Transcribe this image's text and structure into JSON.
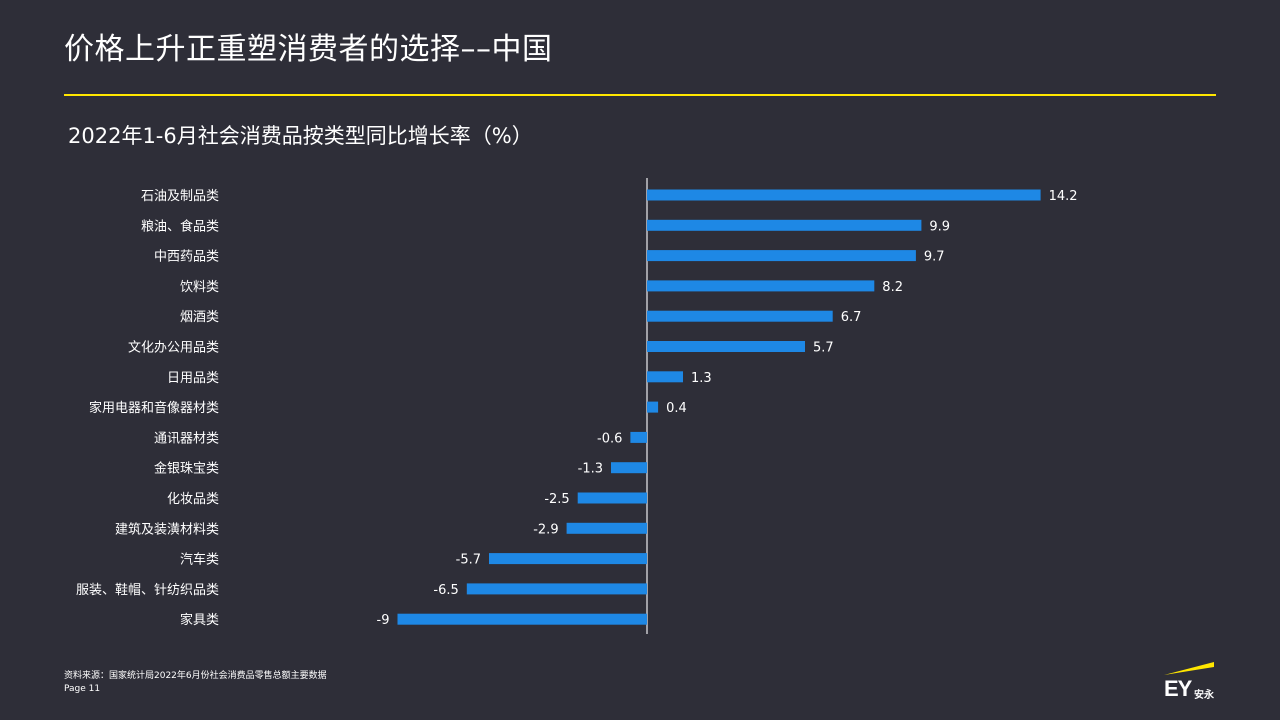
{
  "header": {
    "title": "价格上升正重塑消费者的选择––中国"
  },
  "chart_data": {
    "type": "bar",
    "orientation": "horizontal",
    "title": "2022年1-6月社会消费品按类型同比增长率（%）",
    "categories": [
      "石油及制品类",
      "粮油、食品类",
      "中西药品类",
      "饮料类",
      "烟酒类",
      "文化办公用品类",
      "日用品类",
      "家用电器和音像器材类",
      "通讯器材类",
      "金银珠宝类",
      "化妆品类",
      "建筑及装潢材料类",
      "汽车类",
      "服装、鞋帽、针纺织品类",
      "家具类"
    ],
    "values": [
      14.2,
      9.9,
      9.7,
      8.2,
      6.7,
      5.7,
      1.3,
      0.4,
      -0.6,
      -1.3,
      -2.5,
      -2.9,
      -5.7,
      -6.5,
      -9
    ],
    "value_labels": [
      "14.2",
      "9.9",
      "9.7",
      "8.2",
      "6.7",
      "5.7",
      "1.3",
      "0.4",
      "-0.6",
      "-1.3",
      "-2.5",
      "-2.9",
      "-5.7",
      "-6.5",
      "-9"
    ],
    "xlim": [
      -9,
      14.2
    ],
    "grid": false,
    "bar_color": "#1e88e5",
    "axis_color": "#c7c7cc"
  },
  "footer": {
    "source": "资料来源：国家统计局2022年6月份社会消费品零售总额主要数据",
    "page": "Page 11"
  },
  "logo": {
    "brand": "EY",
    "brand_cn": "安永",
    "accent_color": "#ffe600"
  }
}
